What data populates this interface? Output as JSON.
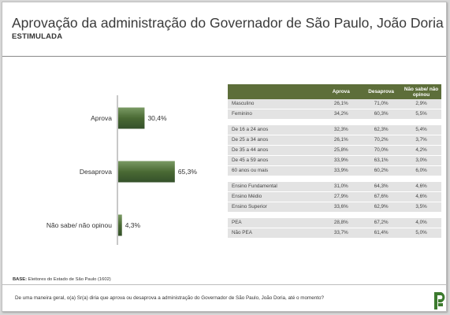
{
  "header": {
    "title": "Aprovação da administração do Governador de São Paulo, João Doria",
    "subtitle": "ESTIMULADA"
  },
  "colors": {
    "bar_dark": "#3f5a2b",
    "bar_light": "#7a9a64",
    "table_header": "#5d6e3a",
    "table_row": "#e3e3e3",
    "logo": "#3c7a2e"
  },
  "chart_data": {
    "type": "bar",
    "orientation": "horizontal",
    "categories": [
      "Aprova",
      "Desaprova",
      "Não sabe/ não opinou"
    ],
    "values": [
      30.4,
      65.3,
      4.3
    ],
    "value_labels": [
      "30,4%",
      "65,3%",
      "4,3%"
    ],
    "unit": "%",
    "xlim": [
      0,
      100
    ],
    "grid": false,
    "legend": "none"
  },
  "table": {
    "headers": [
      "Aprova",
      "Desaprova",
      "Não sabe/ não opinou"
    ],
    "groups": [
      {
        "rows": [
          {
            "label": "Masculino",
            "values": [
              "26,1%",
              "71,0%",
              "2,9%"
            ]
          },
          {
            "label": "Feminino",
            "values": [
              "34,2%",
              "60,3%",
              "5,5%"
            ]
          }
        ]
      },
      {
        "rows": [
          {
            "label": "De 16 a 24 anos",
            "values": [
              "32,3%",
              "62,3%",
              "5,4%"
            ]
          },
          {
            "label": "De 25 a 34 anos",
            "values": [
              "26,1%",
              "70,2%",
              "3,7%"
            ]
          },
          {
            "label": "De 35 a 44 anos",
            "values": [
              "25,8%",
              "70,0%",
              "4,2%"
            ]
          },
          {
            "label": "De 45 a 59 anos",
            "values": [
              "33,9%",
              "63,1%",
              "3,0%"
            ]
          },
          {
            "label": "60 anos ou mais",
            "values": [
              "33,9%",
              "60,2%",
              "6,0%"
            ]
          }
        ]
      },
      {
        "rows": [
          {
            "label": "Ensino Fundamental",
            "values": [
              "31,0%",
              "64,3%",
              "4,6%"
            ]
          },
          {
            "label": "Ensino Médio",
            "values": [
              "27,9%",
              "67,6%",
              "4,6%"
            ]
          },
          {
            "label": "Ensino Superior",
            "values": [
              "33,6%",
              "62,9%",
              "3,5%"
            ]
          }
        ]
      },
      {
        "rows": [
          {
            "label": "PEA",
            "values": [
              "28,8%",
              "67,2%",
              "4,0%"
            ]
          },
          {
            "label": "Não PEA",
            "values": [
              "33,7%",
              "61,4%",
              "5,0%"
            ]
          }
        ]
      }
    ]
  },
  "footer": {
    "base_label": "BASE:",
    "base_text": "Eleitores do Estado de São Paulo (1602)",
    "question": "De uma maneira geral, o(a) Sr(a) diria que aprova ou desaprova a administração do Governador de São Paulo, João Doria, até o momento?"
  },
  "logo": {
    "icon": "p-logo-icon"
  }
}
